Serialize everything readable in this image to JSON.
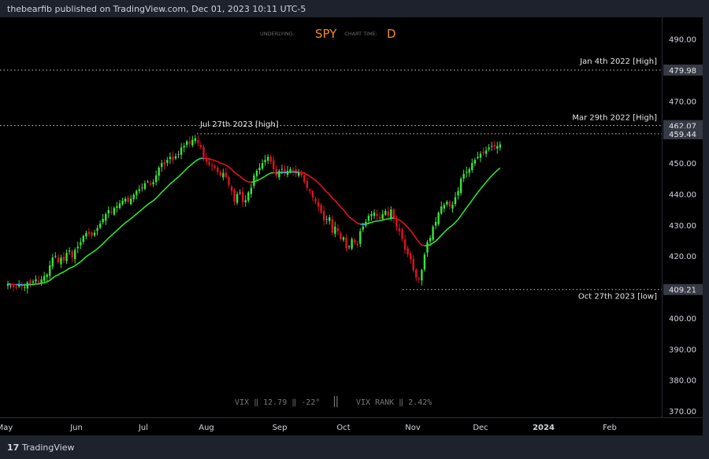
{
  "header": {
    "published": "thebearfib published on TradingView.com, Dec 01, 2023 10:11 UTC-5"
  },
  "footer": {
    "logo": "17",
    "brand": "TradingView"
  },
  "info": {
    "underlying_label": "UNDERLYING:",
    "symbol": "SPY",
    "chart_time_label": "CHART TIME:",
    "timeframe": "D",
    "vix_text": "VIX ‖ 12.79 ‖ -22°",
    "vix_sep": "‖",
    "vix_rank_text": "VIX RANK ‖ 2.42%"
  },
  "colors": {
    "bull": "#3be33b",
    "bear": "#e0121f",
    "neutral": "#9b9b9b",
    "ma_up": "#2ee52e",
    "ma_down": "#e8111c",
    "ma_flat": "#3fb6e0",
    "level_line": "#c8c8c8",
    "symbol": "#f08a24"
  },
  "chart_data": {
    "type": "candlestick",
    "symbol": "SPY",
    "timeframe": "D",
    "ylim": [
      368,
      497
    ],
    "y_ticks": [
      370,
      380,
      390,
      400,
      410,
      420,
      430,
      440,
      450,
      460,
      470,
      480,
      490
    ],
    "y_tick_labels": [
      "370.00",
      "380.00",
      "390.00",
      "400.00",
      "410.00",
      "420.00",
      "430.00",
      "440.00",
      "450.00",
      "460.00",
      "470.00",
      "480.00",
      "490.00"
    ],
    "x_ticks": [
      {
        "label": "May",
        "date": "2023-05-01"
      },
      {
        "label": "Jun",
        "date": "2023-06-01"
      },
      {
        "label": "Jul",
        "date": "2023-07-03"
      },
      {
        "label": "Aug",
        "date": "2023-08-01"
      },
      {
        "label": "Sep",
        "date": "2023-09-01"
      },
      {
        "label": "Oct",
        "date": "2023-10-02"
      },
      {
        "label": "Nov",
        "date": "2023-11-01"
      },
      {
        "label": "Dec",
        "date": "2023-12-01"
      },
      {
        "label": "2024",
        "date": "2024-01-02"
      },
      {
        "label": "Feb",
        "date": "2024-02-01"
      }
    ],
    "levels": [
      {
        "label": "Jan 4th 2022 [High]",
        "value": 479.98,
        "value_label": "479.98"
      },
      {
        "label": "Mar 29th 2022 [High]",
        "value": 462.07,
        "value_label": "462.07"
      },
      {
        "label": "Jul 27th 2023 [high]",
        "value": 459.44,
        "value_label": "459.44"
      },
      {
        "label": "Oct 27th 2023 [low]",
        "value": 409.21,
        "value_label": "409.21"
      }
    ],
    "closes": [
      411,
      410.5,
      410,
      409.8,
      411,
      410.2,
      410,
      411.5,
      410.8,
      411.8,
      412.5,
      411.6,
      412.5,
      413.5,
      414,
      417,
      419.5,
      420,
      418,
      419.5,
      418.5,
      421,
      421.8,
      419.5,
      422,
      423,
      424.5,
      426.5,
      427.5,
      427,
      426.5,
      427.5,
      429,
      430.5,
      432,
      433.5,
      434.8,
      434,
      435.5,
      436,
      437,
      437.8,
      438.5,
      437.5,
      438.5,
      439.8,
      441,
      441.5,
      442,
      443.5,
      444,
      443,
      443.8,
      446,
      448.5,
      450,
      449.5,
      451,
      452,
      451,
      452.2,
      452.8,
      455,
      455.5,
      457,
      456.2,
      457.5,
      458,
      456.5,
      455,
      452,
      450.5,
      449.5,
      449,
      448.5,
      447,
      446,
      446.8,
      445.5,
      443,
      441,
      437.5,
      440,
      440.5,
      437.5,
      438,
      440.5,
      442,
      446,
      447.5,
      448.5,
      450,
      451,
      452,
      450.5,
      448,
      446,
      447.5,
      448,
      446.8,
      447.5,
      448,
      447.5,
      446.5,
      447,
      446,
      444,
      442,
      441,
      439,
      437.5,
      436,
      434,
      431.5,
      432,
      432.5,
      427.5,
      429.5,
      428,
      425.5,
      426,
      422.5,
      423,
      425.5,
      424.5,
      423.5,
      428,
      429.5,
      431,
      433,
      433.5,
      434,
      433,
      432,
      433.5,
      434.5,
      433,
      435,
      432,
      429.5,
      428,
      425.5,
      422,
      420.5,
      419,
      415.5,
      413,
      412.5,
      415.5,
      420.5,
      424.5,
      425.8,
      429.5,
      431,
      434,
      436,
      436.5,
      437.5,
      436,
      436.5,
      439,
      441,
      445,
      446.5,
      447.2,
      448,
      450,
      451,
      452,
      453,
      453.2,
      454,
      455,
      455.5,
      455.3,
      455.5,
      456
    ],
    "ema_end": 447.5
  }
}
